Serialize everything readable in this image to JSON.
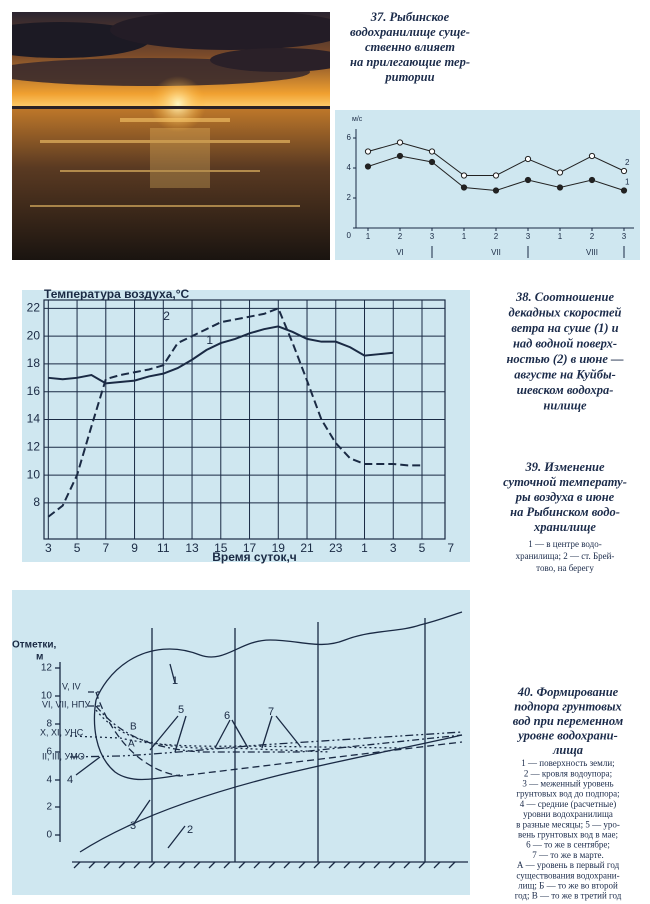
{
  "captions": {
    "fig37": {
      "lines": [
        "37. Рыбинское",
        "водохранилище суще-",
        "ственно влияет",
        "на прилегающие тер-",
        "ритории"
      ]
    },
    "fig38": {
      "lines": [
        "38. Соотношение",
        "декадных скоростей",
        "ветра на суше (1) и",
        "над водной поверх-",
        "ностью (2) в июне —",
        "августе на Куйбы-",
        "шевском водохра-",
        "нилище"
      ]
    },
    "fig39": {
      "lines": [
        "39. Изменение",
        "суточной температу-",
        "ры воздуха в июне",
        "на Рыбинском водо-",
        "хранилище"
      ],
      "legend": [
        "1 — в центре водо-",
        "хранилища; 2 — ст. Брей-",
        "тово, на берегу"
      ]
    },
    "fig40": {
      "lines": [
        "40. Формирование",
        "подпора грунтовых",
        "вод при переменном",
        "уровне водохрани-",
        "лища"
      ],
      "legend": [
        "1 — поверхность земли;",
        "2 — кровля водоупора;",
        "3 — меженный уровень",
        "грунтовых вод до подпора;",
        "4 — средние (расчетные)",
        "уровни водохранилища",
        "в разные месяцы; 5 — уро-",
        "вень грунтовых вод в мае;",
        "6 — то же в сентябре;",
        "7 — то же в марте.",
        "А — уровень в первый год",
        "существования водохрани-",
        "лищ; Б — то же во второй",
        "год; В — то же в третий год"
      ]
    }
  },
  "chart_data": [
    {
      "type": "line",
      "y_axis_label": "м/с",
      "categories": [
        "1",
        "2",
        "3",
        "1",
        "2",
        "3",
        "1",
        "2",
        "3"
      ],
      "months": [
        "VI",
        "VII",
        "VIII"
      ],
      "series": [
        {
          "name": "1",
          "color": "#222222",
          "marker": "filled",
          "style": "solid",
          "values": [
            4.1,
            4.8,
            4.4,
            2.7,
            2.5,
            3.2,
            2.7,
            3.2,
            2.5
          ]
        },
        {
          "name": "2",
          "color": "#222222",
          "marker": "open",
          "style": "solid",
          "values": [
            5.1,
            5.7,
            5.1,
            3.5,
            3.5,
            4.6,
            3.7,
            4.8,
            3.8
          ]
        }
      ],
      "ylim": [
        0,
        6.6
      ],
      "yticks": [
        0,
        2,
        4,
        6
      ],
      "grid": false,
      "background": "#cfe7f0"
    },
    {
      "type": "line",
      "y_axis_label": "Температура воздуха,°С",
      "x_axis_label": "Время суток,ч",
      "x": [
        3,
        4,
        5,
        6,
        7,
        8,
        9,
        10,
        11,
        12,
        13,
        14,
        15,
        16,
        17,
        18,
        19,
        20,
        21,
        22,
        23,
        24,
        25,
        26,
        27,
        28,
        29
      ],
      "series": [
        {
          "name": "1",
          "color": "#1a2a44",
          "marker": "none",
          "style": "solid",
          "values": [
            17.0,
            16.9,
            17.0,
            17.2,
            16.6,
            16.7,
            16.8,
            17.1,
            17.3,
            17.7,
            18.3,
            19.0,
            19.5,
            19.8,
            20.2,
            20.5,
            20.7,
            20.3,
            19.8,
            19.6,
            19.6,
            19.2,
            18.6,
            18.7,
            18.8,
            null,
            null
          ]
        },
        {
          "name": "2",
          "color": "#1a2a44",
          "marker": "none",
          "style": "dashed",
          "values": [
            7.0,
            7.8,
            10.0,
            13.5,
            16.9,
            17.2,
            17.4,
            17.6,
            17.9,
            19.5,
            20.0,
            20.5,
            21.0,
            21.2,
            21.4,
            21.6,
            22.0,
            19.5,
            16.8,
            14.0,
            12.3,
            11.2,
            10.8,
            10.8,
            10.8,
            10.7,
            10.7
          ]
        }
      ],
      "xlim": [
        2.7,
        30.6
      ],
      "ylim": [
        5.4,
        22.6
      ],
      "xticks": [
        3,
        5,
        7,
        9,
        11,
        13,
        15,
        17,
        19,
        21,
        23,
        {
          "value": 25,
          "label": "1"
        },
        {
          "value": 27,
          "label": "3"
        },
        {
          "value": 29,
          "label": "5"
        },
        {
          "value": 31,
          "label": "7"
        }
      ],
      "yticks": [
        8,
        10,
        12,
        14,
        16,
        18,
        20,
        22
      ],
      "grid": true,
      "background": "#cfe7f0"
    }
  ],
  "diagram": {
    "axis_title": "Отметки,",
    "axis_unit": "м",
    "axis_ticks": [
      12,
      10,
      8,
      6,
      4,
      2,
      0
    ],
    "levels": [
      "V, IV",
      "VI, VII, НПУ",
      "X, XI, УНС",
      "II, III, УМО"
    ],
    "curve_labels": [
      "1",
      "2",
      "3",
      "4",
      "5",
      "6",
      "7"
    ],
    "point_labels": [
      "В",
      "А"
    ]
  }
}
